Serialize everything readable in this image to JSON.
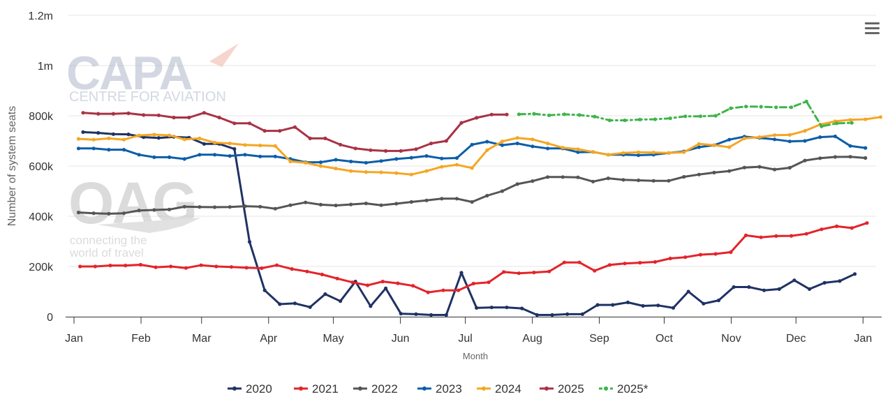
{
  "menu": {
    "icon": "hamburger-menu-icon"
  },
  "watermarks": {
    "capa": {
      "name": "CAPA",
      "tagline": "CENTRE FOR AVIATION"
    },
    "oag": {
      "name": "OAG",
      "tagline_lines": [
        "connecting the",
        "world of travel"
      ]
    }
  },
  "chart_data": {
    "type": "line",
    "xlabel": "Month",
    "ylabel": "Number of system seats",
    "ylim": [
      0,
      1200000
    ],
    "yticks": [
      0,
      200000,
      400000,
      600000,
      800000,
      1000000,
      1200000
    ],
    "ytick_labels": [
      "0",
      "200k",
      "400k",
      "600k",
      "800k",
      "1m",
      "1.2m"
    ],
    "x_domain_weeks": [
      0,
      53
    ],
    "month_ticks": [
      0,
      4.43,
      8.43,
      12.86,
      17.14,
      21.57,
      25.86,
      30.29,
      34.71,
      39,
      43.43,
      47.71,
      52.14
    ],
    "xtick_labels": [
      "Jan",
      "Feb",
      "Mar",
      "Apr",
      "May",
      "Jun",
      "Jul",
      "Aug",
      "Sep",
      "Oct",
      "Nov",
      "Dec",
      "Jan"
    ],
    "grid": true,
    "legend_position": "bottom-center",
    "series": [
      {
        "name": "2020",
        "color": "#1f3264",
        "dash": false,
        "start_week": 0.6,
        "values": [
          735000,
          732000,
          727000,
          726000,
          715000,
          712000,
          716000,
          713000,
          688000,
          688000,
          668000,
          298000,
          105000,
          50000,
          53000,
          38000,
          90000,
          62000,
          140000,
          42000,
          113000,
          12000,
          10000,
          7000,
          7000,
          175000,
          35000,
          37000,
          37000,
          33000,
          7000,
          7000,
          10000,
          10000,
          47000,
          47000,
          57000,
          43000,
          45000,
          35000,
          100000,
          52000,
          65000,
          118000,
          118000,
          105000,
          110000,
          145000,
          110000,
          135000,
          142000,
          170000
        ]
      },
      {
        "name": "2021",
        "color": "#e3242b",
        "dash": false,
        "start_week": 0.4,
        "values": [
          200000,
          200000,
          204000,
          204000,
          207000,
          197000,
          200000,
          194000,
          205000,
          200000,
          198000,
          195000,
          193000,
          205000,
          190000,
          180000,
          168000,
          152000,
          137000,
          125000,
          140000,
          133000,
          123000,
          97000,
          105000,
          105000,
          132000,
          137000,
          178000,
          173000,
          176000,
          180000,
          216000,
          216000,
          183000,
          206000,
          212000,
          215000,
          218000,
          232000,
          237000,
          247000,
          250000,
          257000,
          324000,
          316000,
          321000,
          322000,
          330000,
          348000,
          360000,
          353000,
          373000
        ]
      },
      {
        "name": "2022",
        "color": "#555555",
        "dash": false,
        "start_week": 0.3,
        "values": [
          415000,
          412000,
          410000,
          412000,
          423000,
          425000,
          427000,
          438000,
          437000,
          436000,
          437000,
          440000,
          438000,
          430000,
          444000,
          455000,
          446000,
          443000,
          447000,
          451000,
          444000,
          450000,
          457000,
          463000,
          470000,
          470000,
          457000,
          482000,
          500000,
          528000,
          540000,
          556000,
          556000,
          555000,
          538000,
          551000,
          545000,
          543000,
          541000,
          541000,
          557000,
          566000,
          574000,
          580000,
          594000,
          597000,
          586000,
          593000,
          622000,
          631000,
          636000,
          637000,
          632000
        ]
      },
      {
        "name": "2023",
        "color": "#0b5ea8",
        "dash": false,
        "start_week": 0.3,
        "values": [
          670000,
          670000,
          665000,
          665000,
          645000,
          635000,
          635000,
          628000,
          645000,
          645000,
          640000,
          645000,
          638000,
          638000,
          628000,
          615000,
          615000,
          625000,
          618000,
          613000,
          620000,
          628000,
          633000,
          640000,
          630000,
          632000,
          685000,
          697000,
          683000,
          690000,
          678000,
          670000,
          670000,
          655000,
          656000,
          645000,
          645000,
          643000,
          645000,
          652000,
          658000,
          675000,
          683000,
          705000,
          717000,
          712000,
          706000,
          698000,
          700000,
          715000,
          718000,
          680000,
          672000
        ]
      },
      {
        "name": "2024",
        "color": "#f5a623",
        "dash": false,
        "start_week": 0.3,
        "values": [
          708000,
          705000,
          710000,
          705000,
          722000,
          725000,
          722000,
          706000,
          710000,
          693000,
          690000,
          684000,
          682000,
          680000,
          618000,
          613000,
          600000,
          590000,
          580000,
          576000,
          575000,
          572000,
          566000,
          580000,
          597000,
          605000,
          592000,
          663000,
          698000,
          712000,
          706000,
          690000,
          673000,
          667000,
          656000,
          645000,
          652000,
          655000,
          654000,
          652000,
          655000,
          688000,
          683000,
          675000,
          710000,
          715000,
          723000,
          724000,
          740000,
          765000,
          778000,
          784000,
          786000,
          795000
        ]
      },
      {
        "name": "2025",
        "color": "#a83244",
        "dash": false,
        "start_week": 0.6,
        "values": [
          812000,
          808000,
          808000,
          810000,
          803000,
          802000,
          793000,
          793000,
          812000,
          793000,
          770000,
          770000,
          740000,
          740000,
          755000,
          710000,
          710000,
          685000,
          670000,
          663000,
          660000,
          660000,
          667000,
          690000,
          700000,
          772000,
          792000,
          805000,
          805000
        ]
      },
      {
        "name": "2025*",
        "color": "#3db54a",
        "dash": true,
        "start_week": 29.4,
        "values": [
          806000,
          808000,
          802000,
          806000,
          803000,
          797000,
          782000,
          782000,
          785000,
          786000,
          790000,
          798000,
          798000,
          800000,
          830000,
          837000,
          836000,
          834000,
          834000,
          857000,
          758000,
          770000,
          772000
        ]
      }
    ]
  }
}
